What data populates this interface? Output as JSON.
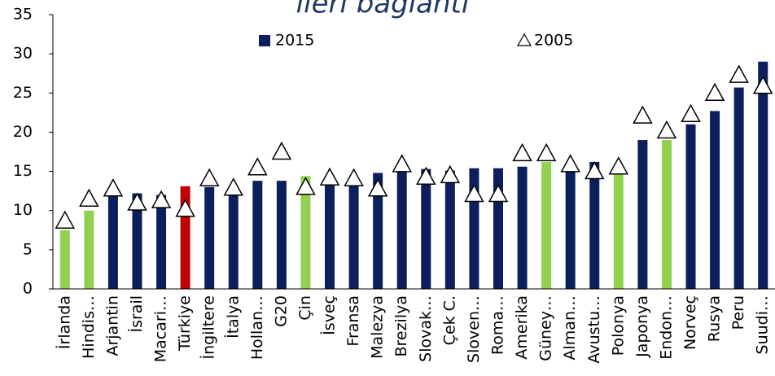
{
  "chart_data": {
    "type": "bar",
    "title": "ileri bağlantı",
    "categories": [
      "İrlanda",
      "Hindis…",
      "Arjantin",
      "İsrail",
      "Macari…",
      "Türkiye",
      "İngiltere",
      "İtalya",
      "Hollan…",
      "G20",
      "Çin",
      "İsveç",
      "Fransa",
      "Malezya",
      "Brezilya",
      "Slovak…",
      "Çek C.",
      "Sloven…",
      "Roma…",
      "Amerika",
      "Güney…",
      "Alman…",
      "Avustu…",
      "Polonya",
      "Japonya",
      "Endon…",
      "Norveç",
      "Rusya",
      "Peru",
      "Suudi…"
    ],
    "series": [
      {
        "name": "2015",
        "color": "#0a1f5c",
        "colors": [
          "#92d050",
          "#92d050",
          "#0a1f5c",
          "#0a1f5c",
          "#0a1f5c",
          "#c00000",
          "#0a1f5c",
          "#0a1f5c",
          "#0a1f5c",
          "#0a1f5c",
          "#92d050",
          "#0a1f5c",
          "#0a1f5c",
          "#0a1f5c",
          "#0a1f5c",
          "#0a1f5c",
          "#0a1f5c",
          "#0a1f5c",
          "#0a1f5c",
          "#0a1f5c",
          "#92d050",
          "#0a1f5c",
          "#0a1f5c",
          "#92d050",
          "#0a1f5c",
          "#92d050",
          "#0a1f5c",
          "#0a1f5c",
          "#0a1f5c",
          "#0a1f5c"
        ],
        "values": [
          7.5,
          10,
          12,
          12.2,
          12,
          13.1,
          13,
          12,
          13.8,
          13.8,
          14.4,
          13.2,
          13.2,
          14.8,
          15,
          15.3,
          15.1,
          15.4,
          15.4,
          15.6,
          16.2,
          15.3,
          16.2,
          15.3,
          19,
          19,
          21,
          22.7,
          25.7,
          29
        ]
      },
      {
        "name": "2005",
        "color": "#000000",
        "marker": "triangle",
        "values": [
          8.6,
          11.4,
          12.7,
          10.9,
          11.2,
          10.1,
          14,
          12.8,
          15.4,
          17.4,
          12.9,
          14.1,
          14,
          12.7,
          15.8,
          14.2,
          14.4,
          12,
          12,
          17.2,
          17.2,
          15.8,
          14.9,
          15.5,
          22,
          20.1,
          22.2,
          24.9,
          27.2,
          25.8
        ]
      }
    ],
    "ylim": [
      0,
      35
    ],
    "yticks": [
      0,
      5,
      10,
      15,
      20,
      25,
      30,
      35
    ],
    "grid": false
  }
}
